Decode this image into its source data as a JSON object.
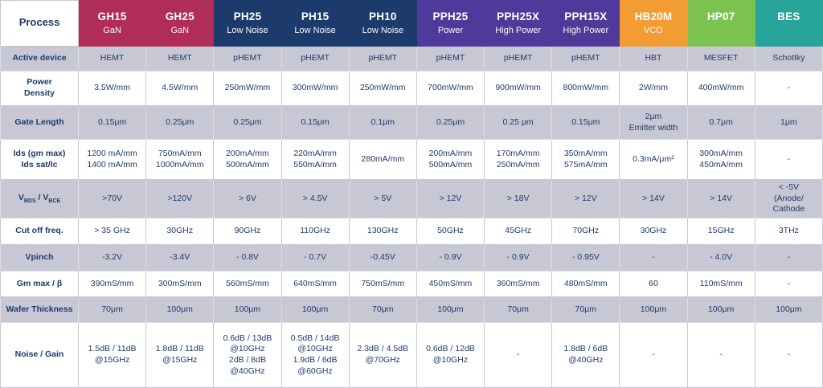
{
  "colors": {
    "crimson": "#b02d57",
    "navy": "#1d3a6d",
    "purple": "#4f3a9b",
    "orange": "#f39c33",
    "green": "#7cc250",
    "teal": "#27a49a",
    "text_navy": "#1e3a6e",
    "shaded_row_bg": "#c7c8d3",
    "plain_row_bg": "#ffffff"
  },
  "table": {
    "corner_label": "Process",
    "columns": [
      {
        "name": "GH15",
        "subtitle": "GaN",
        "color": "#b02d57"
      },
      {
        "name": "GH25",
        "subtitle": "GaN",
        "color": "#b02d57"
      },
      {
        "name": "PH25",
        "subtitle": "Low Noise",
        "color": "#1d3a6d"
      },
      {
        "name": "PH15",
        "subtitle": "Low Noise",
        "color": "#1d3a6d"
      },
      {
        "name": "PH10",
        "subtitle": "Low Noise",
        "color": "#1d3a6d"
      },
      {
        "name": "PPH25",
        "subtitle": "Power",
        "color": "#4f3a9b"
      },
      {
        "name": "PPH25X",
        "subtitle": "High Power",
        "color": "#4f3a9b"
      },
      {
        "name": "PPH15X",
        "subtitle": "High Power",
        "color": "#4f3a9b"
      },
      {
        "name": "HB20M",
        "subtitle": "VCO",
        "color": "#f39c33"
      },
      {
        "name": "HP07",
        "subtitle": "",
        "color": "#7cc250"
      },
      {
        "name": "BES",
        "subtitle": "",
        "color": "#27a49a"
      }
    ],
    "rows": [
      {
        "label": "Active device",
        "shaded": true,
        "cells": [
          "HEMT",
          "HEMT",
          "pHEMT",
          "pHEMT",
          "pHEMT",
          "pHEMT",
          "pHEMT",
          "pHEMT",
          "HBT",
          "MESFET",
          "Schottky"
        ]
      },
      {
        "label": "Power\nDensity",
        "shaded": false,
        "cells": [
          "3.5W/mm",
          "4.5W/mm",
          "250mW/mm",
          "300mW/mm",
          "250mW/mm",
          "700mW/mm",
          "900mW/mm",
          "800mW/mm",
          "2W/mm",
          "400mW/mm",
          "-"
        ]
      },
      {
        "label": "Gate Length",
        "shaded": true,
        "cells": [
          "0.15μm",
          "0.25μm",
          "0.25μm",
          "0.15μm",
          "0.1μm",
          "0.25μm",
          "0.25 μm",
          "0.15μm",
          "2μm\nEmitter width",
          "0.7μm",
          "1μm"
        ]
      },
      {
        "label": "Ids (gm max)\nIds sat/Ic",
        "shaded": false,
        "cells": [
          "1200 mA/mm\n1400 mA/mm",
          "750mA/mm\n1000mA/mm",
          "200mA/mm\n500mA/mm",
          "220mA/mm\n550mA/mm",
          "280mA/mm",
          "200mA/mm\n500mA/mm",
          "170mA/mm\n250mA/mm",
          "350mA/mm\n575mA/mm",
          "0.3mA/μm²",
          "300mA/mm\n450mA/mm",
          "-"
        ]
      },
      {
        "label": "VBDS / VBCE",
        "shaded": true,
        "label_parts": [
          {
            "text": "V"
          },
          {
            "text": "BDS",
            "sub": true
          },
          {
            "text": " / V"
          },
          {
            "text": "BCE",
            "sub": true
          }
        ],
        "cells": [
          ">70V",
          ">120V",
          "> 6V",
          "> 4.5V",
          "> 5V",
          "> 12V",
          "> 18V",
          "> 12V",
          "> 14V",
          "> 14V",
          "< -5V\n(Anode/\nCathode"
        ]
      },
      {
        "label": "Cut off freq.",
        "shaded": false,
        "cells": [
          "> 35 GHz",
          "30GHz",
          "90GHz",
          "110GHz",
          "130GHz",
          "50GHz",
          "45GHz",
          "70GHz",
          "30GHz",
          "15GHz",
          "3THz"
        ]
      },
      {
        "label": "Vpinch",
        "shaded": true,
        "cells": [
          "-3.2V",
          "-3.4V",
          "- 0.8V",
          "- 0.7V",
          "-0.45V",
          "- 0.9V",
          "- 0.9V",
          "- 0.95V",
          "-",
          "- 4.0V",
          "-"
        ]
      },
      {
        "label": "Gm max / β",
        "shaded": false,
        "cells": [
          "390mS/mm",
          "300mS/mm",
          "560mS/mm",
          "640mS/mm",
          "750mS/mm",
          "450mS/mm",
          "360mS/mm",
          "480mS/mm",
          "60",
          "110mS/mm",
          "-"
        ]
      },
      {
        "label": "Wafer Thickness",
        "shaded": true,
        "cells": [
          "70μm",
          "100μm",
          "100μm",
          "100μm",
          "70μm",
          "100μm",
          "70μm",
          "70μm",
          "100μm",
          "100μm",
          "100μm"
        ]
      },
      {
        "label": "Noise / Gain",
        "shaded": false,
        "cells": [
          "1.5dB / 11dB\n@15GHz",
          "1.8dB / 11dB\n@15GHz",
          "0.6dB / 13dB\n@10GHz\n2dB / 8dB\n@40GHz",
          "0.5dB / 14dB\n@10GHz\n1.9dB / 6dB\n@60GHz",
          "2.3dB / 4.5dB\n@70GHz",
          "0.6dB / 12dB\n@10GHz",
          "-",
          "1.8dB / 6dB\n@40GHz",
          "-",
          "-",
          "-"
        ]
      }
    ]
  }
}
